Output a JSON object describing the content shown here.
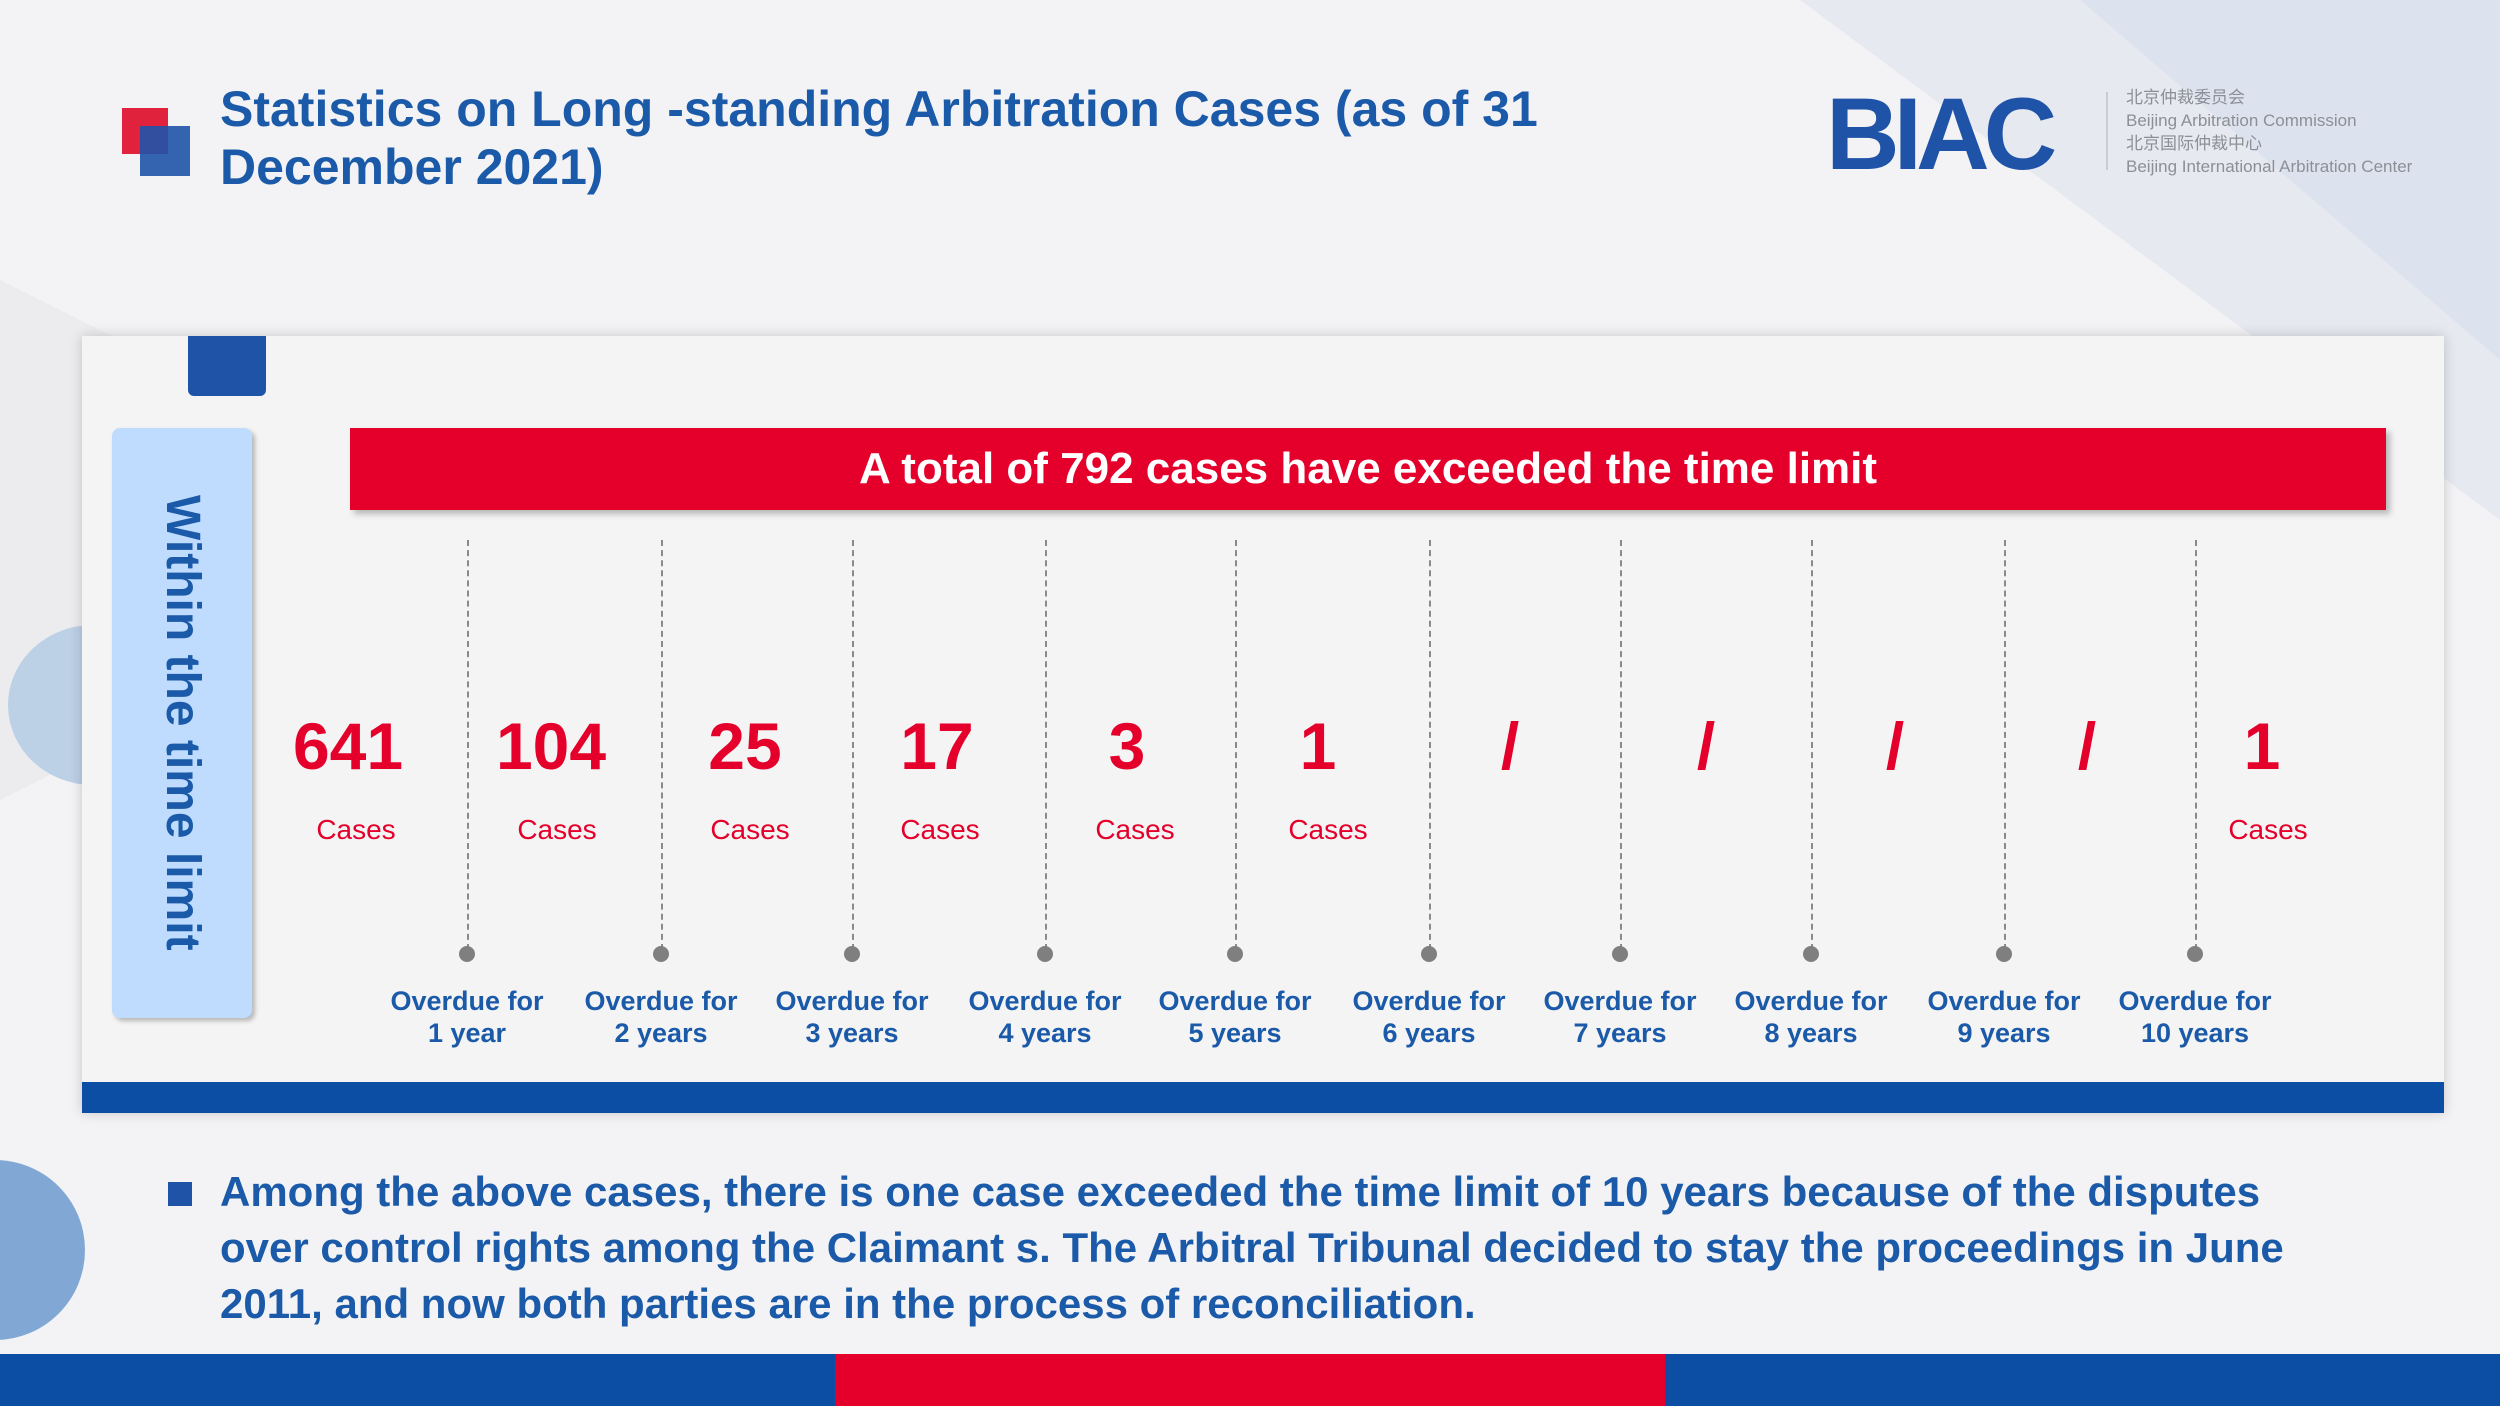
{
  "title": "Statistics on Long -standing Arbitration Cases (as of 31 December 2021)",
  "logo": {
    "mark": "BIAC",
    "line1": "北京仲裁委员会",
    "line2": "Beijing Arbitration Commission",
    "line3": "北京国际仲裁中心",
    "line4": "Beijing International Arbitration Center"
  },
  "within_label": "Within the time limit",
  "total_banner": "A total of 792 cases have exceeded the time limit",
  "columns": [
    {
      "count": "641",
      "unit": "Cases",
      "overdue_line1": "",
      "overdue_line2": ""
    },
    {
      "count": "104",
      "unit": "Cases",
      "overdue_line1": "Overdue for",
      "overdue_line2": "1 year"
    },
    {
      "count": "25",
      "unit": "Cases",
      "overdue_line1": "Overdue for",
      "overdue_line2": "2 years"
    },
    {
      "count": "17",
      "unit": "Cases",
      "overdue_line1": "Overdue for",
      "overdue_line2": "3 years"
    },
    {
      "count": "3",
      "unit": "Cases",
      "overdue_line1": "Overdue for",
      "overdue_line2": "4 years"
    },
    {
      "count": "1",
      "unit": "Cases",
      "overdue_line1": "Overdue for",
      "overdue_line2": "5 years"
    },
    {
      "count": "/",
      "unit": "",
      "overdue_line1": "Overdue for",
      "overdue_line2": "6 years"
    },
    {
      "count": "/",
      "unit": "",
      "overdue_line1": "Overdue for",
      "overdue_line2": "7 years"
    },
    {
      "count": "/",
      "unit": "",
      "overdue_line1": "Overdue for",
      "overdue_line2": "8 years"
    },
    {
      "count": "/",
      "unit": "",
      "overdue_line1": "Overdue for",
      "overdue_line2": "9 years"
    },
    {
      "count": "1",
      "unit": "Cases",
      "overdue_line1": "Overdue for",
      "overdue_line2": "10 years"
    }
  ],
  "note": "Among the above cases,  there is one case exceeded the time limit of 10  years because of the disputes over control rights among the Claimant s. The Arbitral Tribunal decided to stay the proceedings in June 2011, and  now both parties are in the process of reconciliation.",
  "colors": {
    "brand_blue": "#1f53a8",
    "accent_red": "#e4002b",
    "light_blue": "#bfdcff"
  }
}
